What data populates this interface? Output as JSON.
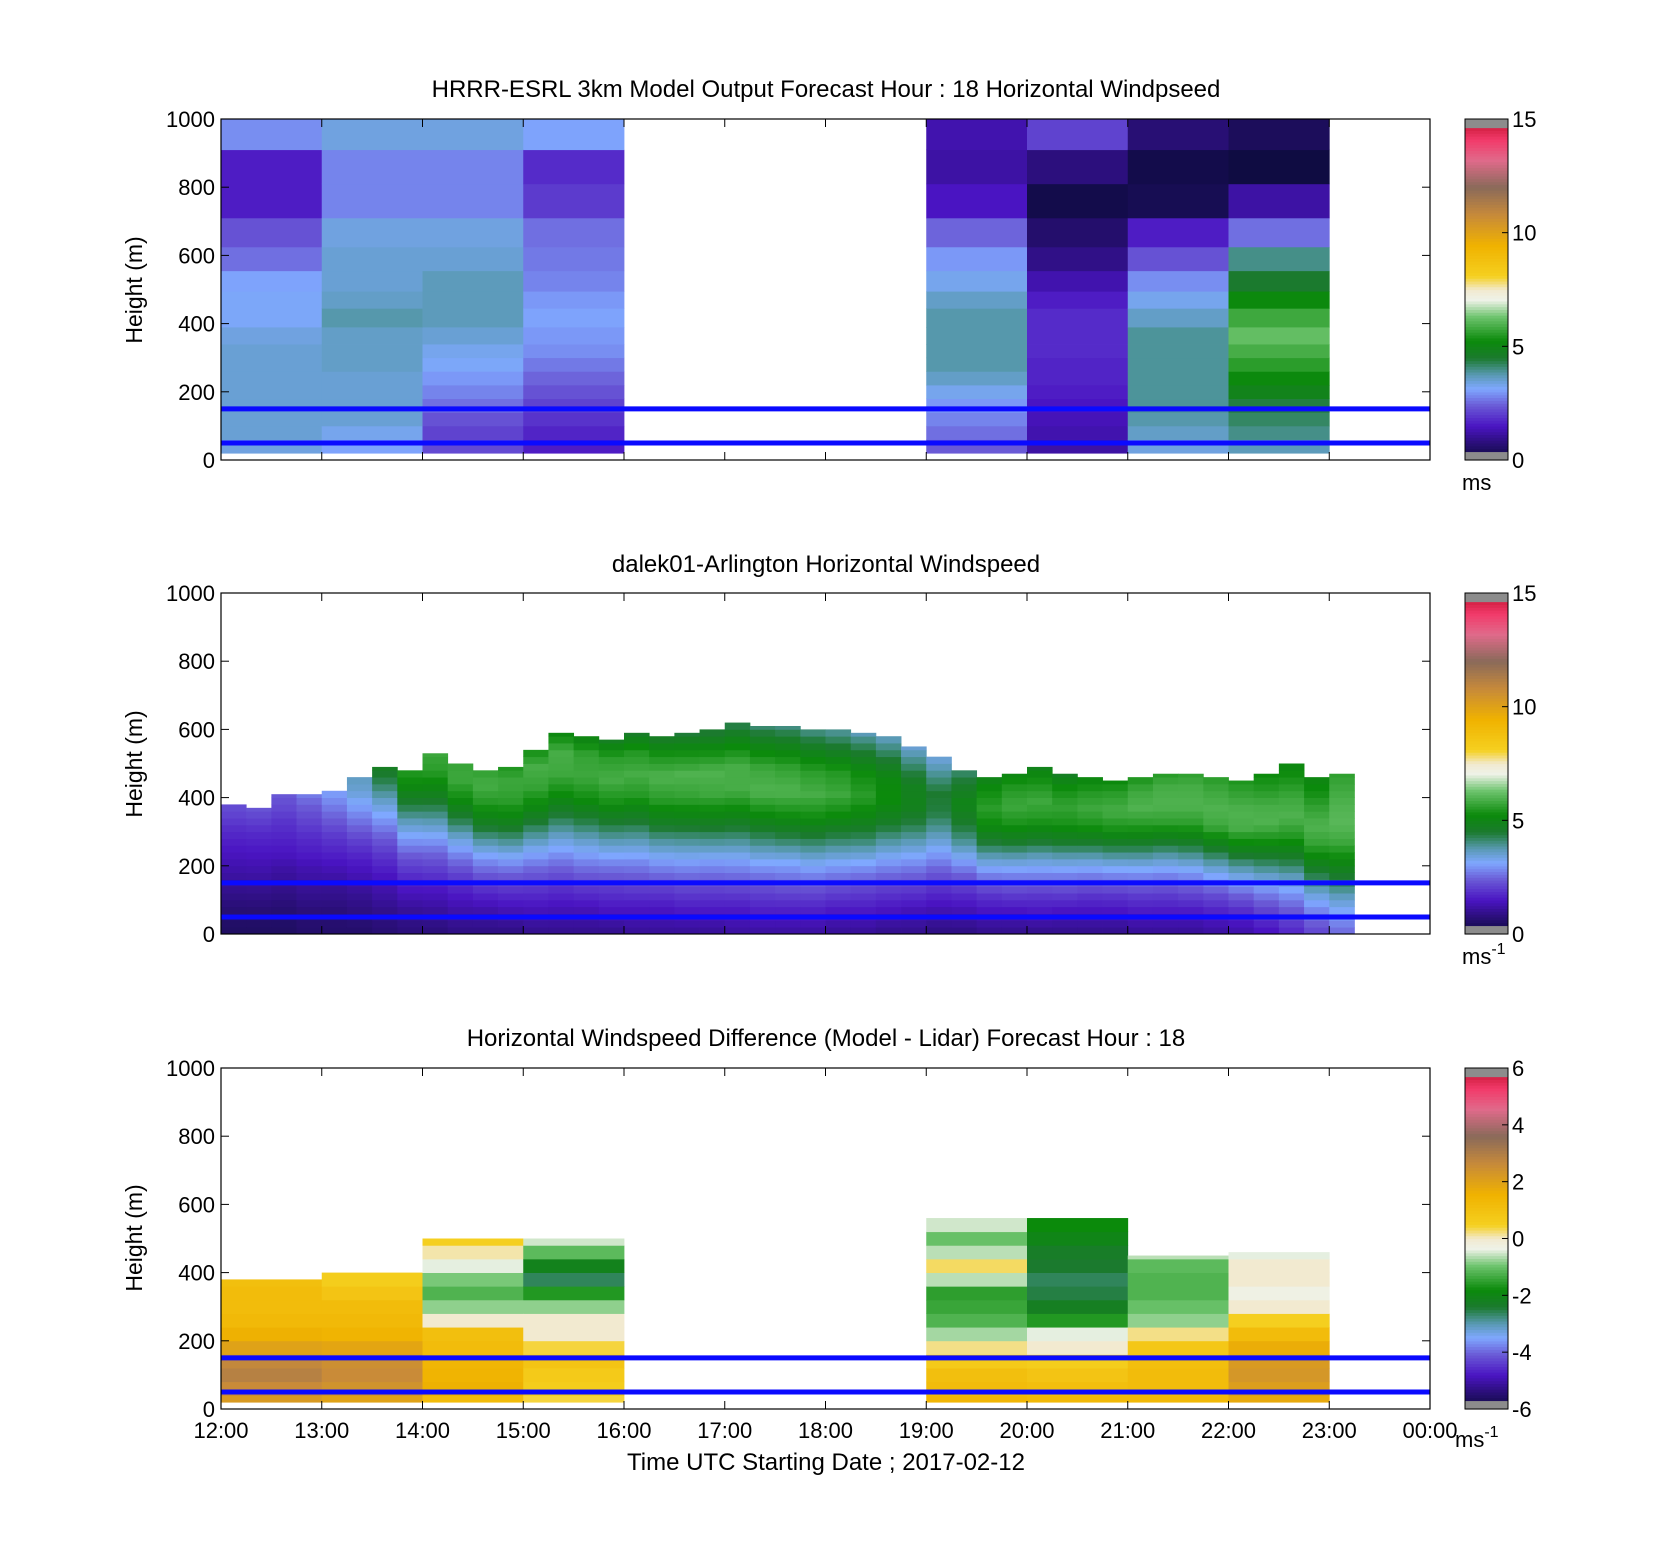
{
  "figure": {
    "xlabel": "Time UTC  Starting Date ; 2017-02-12",
    "ylabel": "Height (m)"
  },
  "chart_data": [
    {
      "type": "heatmap",
      "title": "HRRR-ESRL 3km Model Output   Forecast Hour : 18 Horizontal Windpseed",
      "ylabel": "Height (m)",
      "ylim": [
        0,
        1000
      ],
      "yticks": [
        "0",
        "200",
        "400",
        "600",
        "800",
        "1000"
      ],
      "xlim": [
        "12:00",
        "00:00"
      ],
      "x_tick_labels_shown": false,
      "colorbar": {
        "ticks": [
          "0",
          "5",
          "10",
          "15"
        ],
        "range": [
          0,
          15
        ],
        "unit": "ms",
        "unit_sup": ""
      },
      "reference_lines_m": [
        50,
        150
      ],
      "hours": [
        "12:00",
        "13:00",
        "14:00",
        "15:00",
        "19:00",
        "20:00",
        "21:00",
        "22:00"
      ],
      "levels_m": [
        40,
        80,
        120,
        160,
        200,
        240,
        280,
        320,
        360,
        420,
        470,
        520,
        590,
        660,
        760,
        860,
        960
      ],
      "values": [
        [
          3.4,
          3.5,
          3.5,
          3.5,
          3.5,
          3.5,
          3.5,
          3.5,
          3.4,
          3.2,
          3.2,
          3.1,
          2.6,
          2.3,
          1.6,
          1.6,
          2.9
        ],
        [
          3.1,
          3.3,
          3.5,
          3.5,
          3.5,
          3.5,
          3.6,
          3.6,
          3.6,
          3.8,
          3.6,
          3.5,
          3.5,
          3.4,
          2.8,
          2.8,
          3.4
        ],
        [
          2.2,
          2.1,
          2.3,
          2.6,
          2.8,
          3.0,
          3.2,
          3.3,
          3.5,
          3.7,
          3.7,
          3.7,
          3.5,
          3.4,
          2.8,
          2.8,
          3.4
        ],
        [
          1.6,
          1.7,
          1.9,
          2.1,
          2.3,
          2.5,
          2.7,
          2.9,
          3.0,
          3.1,
          3.0,
          2.8,
          2.7,
          2.6,
          2.0,
          1.8,
          3.1
        ],
        [
          2.4,
          2.6,
          2.8,
          3.0,
          3.3,
          3.6,
          3.8,
          3.8,
          3.8,
          3.8,
          3.6,
          3.3,
          3.0,
          2.5,
          1.5,
          1.2,
          1.3
        ],
        [
          1.2,
          1.3,
          1.4,
          1.5,
          1.6,
          1.7,
          1.7,
          1.8,
          1.8,
          1.8,
          1.6,
          1.3,
          0.9,
          0.6,
          0.2,
          0.8,
          2.1
        ],
        [
          3.4,
          3.6,
          3.8,
          3.9,
          3.9,
          3.9,
          3.9,
          3.9,
          3.9,
          3.6,
          3.3,
          2.9,
          2.3,
          1.6,
          0.3,
          0.2,
          0.7
        ],
        [
          3.7,
          4.0,
          4.2,
          4.4,
          4.9,
          5.2,
          5.6,
          5.9,
          6.2,
          5.8,
          5.2,
          4.5,
          4.0,
          2.6,
          1.2,
          0.1,
          0.4
        ]
      ]
    },
    {
      "type": "heatmap",
      "title": "dalek01-Arlington  Horizontal Windspeed",
      "ylabel": "Height (m)",
      "ylim": [
        0,
        1000
      ],
      "yticks": [
        "0",
        "200",
        "400",
        "600",
        "800",
        "1000"
      ],
      "xlim": [
        "12:00",
        "00:00"
      ],
      "x_tick_labels_shown": false,
      "colorbar": {
        "ticks": [
          "0",
          "5",
          "10",
          "15"
        ],
        "range": [
          0,
          15
        ],
        "unit": "ms",
        "unit_sup": "-1"
      },
      "reference_lines_m": [
        50,
        150
      ],
      "time_step_min": 15,
      "level_step_m": 20,
      "column_top_m": [
        380,
        370,
        410,
        410,
        420,
        460,
        490,
        480,
        530,
        500,
        480,
        490,
        540,
        590,
        580,
        570,
        590,
        580,
        590,
        600,
        620,
        610,
        610,
        600,
        600,
        590,
        580,
        550,
        520,
        480,
        460,
        470,
        490,
        470,
        460,
        450,
        460,
        470,
        470,
        460,
        450,
        470,
        500,
        460,
        470
      ],
      "column_speed_profile": [
        [
          0.5,
          0.6,
          0.8,
          1.0,
          1.2,
          1.4,
          1.6,
          1.8,
          2.1,
          2.3
        ],
        [
          0.5,
          0.6,
          0.8,
          1.0,
          1.2,
          1.4,
          1.6,
          1.8,
          2.1,
          2.4
        ],
        [
          0.5,
          0.6,
          0.8,
          1.0,
          1.2,
          1.5,
          1.7,
          1.9,
          2.2,
          2.4
        ],
        [
          0.6,
          0.7,
          0.9,
          1.1,
          1.3,
          1.6,
          1.8,
          2.1,
          2.4,
          2.8
        ],
        [
          0.6,
          0.7,
          0.9,
          1.1,
          1.4,
          1.7,
          2.0,
          2.4,
          2.8,
          3.2
        ],
        [
          0.6,
          0.8,
          1.0,
          1.3,
          1.6,
          2.0,
          2.5,
          3.0,
          3.5,
          3.7
        ],
        [
          0.7,
          0.9,
          1.2,
          1.5,
          1.9,
          2.4,
          3.0,
          3.6,
          4.3,
          4.8
        ],
        [
          0.8,
          1.0,
          1.4,
          1.8,
          2.3,
          3.0,
          3.7,
          4.5,
          5.2,
          5.6
        ],
        [
          0.8,
          1.1,
          1.5,
          2.0,
          2.6,
          3.4,
          4.2,
          5.0,
          5.6,
          5.8
        ],
        [
          0.9,
          1.2,
          1.6,
          2.1,
          2.8,
          3.6,
          4.5,
          5.3,
          5.8,
          5.7
        ],
        [
          0.9,
          1.2,
          1.7,
          2.3,
          3.0,
          3.9,
          4.8,
          5.5,
          5.9,
          5.6
        ],
        [
          0.9,
          1.3,
          1.8,
          2.4,
          3.2,
          4.1,
          5.0,
          5.6,
          5.8,
          5.4
        ],
        [
          1.0,
          1.4,
          1.9,
          2.5,
          3.3,
          4.2,
          5.1,
          5.7,
          5.9,
          5.2
        ],
        [
          1.0,
          1.4,
          1.9,
          2.6,
          3.4,
          4.3,
          5.2,
          5.8,
          5.9,
          5.0
        ],
        [
          1.0,
          1.4,
          2.0,
          2.7,
          3.5,
          4.4,
          5.3,
          5.8,
          5.7,
          4.8
        ],
        [
          1.0,
          1.5,
          2.0,
          2.7,
          3.6,
          4.5,
          5.4,
          5.9,
          5.6,
          4.6
        ],
        [
          1.1,
          1.5,
          2.1,
          2.8,
          3.7,
          4.6,
          5.5,
          5.9,
          5.5,
          4.5
        ],
        [
          1.1,
          1.5,
          2.1,
          2.9,
          3.8,
          4.8,
          5.6,
          6.0,
          5.4,
          4.4
        ],
        [
          1.1,
          1.6,
          2.2,
          3.0,
          3.9,
          4.9,
          5.7,
          6.0,
          5.3,
          4.3
        ],
        [
          1.1,
          1.6,
          2.2,
          3.0,
          4.0,
          5.0,
          5.8,
          6.0,
          5.2,
          4.2
        ],
        [
          1.2,
          1.6,
          2.3,
          3.1,
          4.1,
          5.1,
          5.9,
          5.9,
          5.1,
          4.1
        ],
        [
          1.2,
          1.7,
          2.3,
          3.2,
          4.2,
          5.2,
          6.0,
          5.8,
          5.0,
          4.0
        ],
        [
          1.2,
          1.7,
          2.4,
          3.2,
          4.3,
          5.3,
          6.0,
          5.7,
          4.9,
          3.9
        ],
        [
          1.2,
          1.7,
          2.4,
          3.3,
          4.3,
          5.3,
          5.9,
          5.6,
          4.8,
          3.8
        ],
        [
          1.1,
          1.6,
          2.3,
          3.2,
          4.2,
          5.2,
          5.8,
          5.5,
          4.6,
          3.7
        ],
        [
          1.1,
          1.6,
          2.2,
          3.1,
          4.1,
          5.0,
          5.6,
          5.3,
          4.5,
          3.6
        ],
        [
          1.0,
          1.5,
          2.1,
          2.9,
          3.8,
          4.7,
          5.3,
          5.1,
          4.3,
          3.5
        ],
        [
          1.0,
          1.4,
          2.0,
          2.7,
          3.5,
          4.3,
          4.9,
          4.8,
          4.1,
          3.4
        ],
        [
          0.9,
          1.3,
          1.8,
          2.4,
          3.1,
          3.8,
          4.4,
          4.5,
          3.9,
          3.3
        ],
        [
          0.9,
          1.3,
          1.8,
          2.4,
          3.2,
          4.0,
          4.6,
          5.0,
          4.6,
          4.0
        ],
        [
          1.0,
          1.4,
          1.9,
          2.6,
          3.5,
          4.4,
          5.2,
          5.6,
          5.3,
          4.8
        ],
        [
          1.0,
          1.4,
          2.0,
          2.7,
          3.6,
          4.6,
          5.4,
          5.8,
          5.5,
          5.0
        ],
        [
          1.0,
          1.5,
          2.0,
          2.8,
          3.7,
          4.7,
          5.5,
          5.8,
          5.4,
          4.8
        ],
        [
          1.0,
          1.4,
          2.0,
          2.7,
          3.6,
          4.6,
          5.4,
          5.7,
          5.3,
          4.6
        ],
        [
          1.0,
          1.4,
          1.9,
          2.6,
          3.5,
          4.5,
          5.4,
          5.8,
          5.5,
          4.9
        ],
        [
          1.0,
          1.4,
          1.9,
          2.6,
          3.5,
          4.5,
          5.4,
          5.9,
          5.6,
          5.1
        ],
        [
          1.1,
          1.5,
          2.0,
          2.7,
          3.6,
          4.6,
          5.5,
          6.0,
          5.8,
          5.3
        ],
        [
          1.1,
          1.5,
          2.0,
          2.7,
          3.6,
          4.6,
          5.6,
          6.0,
          5.9,
          5.5
        ],
        [
          1.1,
          1.5,
          2.1,
          2.8,
          3.7,
          4.7,
          5.6,
          6.0,
          5.9,
          5.6
        ],
        [
          1.2,
          1.6,
          2.2,
          3.0,
          3.9,
          4.9,
          5.8,
          6.0,
          5.8,
          5.5
        ],
        [
          1.3,
          1.7,
          2.4,
          3.2,
          4.1,
          5.1,
          5.9,
          6.0,
          5.7,
          5.4
        ],
        [
          1.5,
          2.0,
          2.7,
          3.5,
          4.4,
          5.3,
          6.0,
          5.9,
          5.5,
          5.2
        ],
        [
          1.8,
          2.3,
          3.0,
          3.8,
          4.7,
          5.5,
          6.0,
          5.8,
          5.4,
          5.0
        ],
        [
          2.2,
          2.7,
          3.4,
          4.2,
          5.0,
          5.7,
          6.0,
          5.7,
          5.3,
          5.0
        ],
        [
          2.6,
          3.1,
          3.7,
          4.5,
          5.2,
          5.8,
          6.1,
          6.0,
          5.8,
          5.6
        ]
      ]
    },
    {
      "type": "heatmap",
      "title": "Horizontal Windspeed Difference (Model - Lidar) Forecast Hour : 18",
      "ylabel": "Height (m)",
      "xlabel": "Time UTC  Starting Date ; 2017-02-12",
      "ylim": [
        0,
        1000
      ],
      "yticks": [
        "0",
        "200",
        "400",
        "600",
        "800",
        "1000"
      ],
      "xticks": [
        "12:00",
        "13:00",
        "14:00",
        "15:00",
        "16:00",
        "17:00",
        "18:00",
        "19:00",
        "20:00",
        "21:00",
        "22:00",
        "23:00",
        "00:00"
      ],
      "colorbar": {
        "ticks": [
          "-6",
          "-4",
          "-2",
          "0",
          "2",
          "4",
          "6"
        ],
        "range": [
          -6,
          6
        ],
        "unit": "ms",
        "unit_sup": "-1"
      },
      "reference_lines_m": [
        50,
        150
      ],
      "hours": [
        "12:00",
        "13:00",
        "14:00",
        "15:00",
        "19:00",
        "20:00",
        "21:00",
        "22:00"
      ],
      "column_top_m": [
        380,
        400,
        500,
        500,
        560,
        560,
        450,
        460
      ],
      "levels_m": [
        20,
        60,
        100,
        140,
        180,
        220,
        260,
        300,
        340,
        380,
        420,
        460,
        500,
        540
      ],
      "values": [
        [
          2.2,
          2.6,
          2.9,
          2.7,
          2.0,
          1.6,
          1.3,
          1.2,
          1.2,
          1.1,
          null,
          null,
          null,
          null
        ],
        [
          2.0,
          2.4,
          2.6,
          2.5,
          1.9,
          1.5,
          1.3,
          1.2,
          0.9,
          0.6,
          null,
          null,
          null,
          null
        ],
        [
          1.2,
          1.6,
          1.5,
          1.4,
          1.2,
          1.1,
          0.0,
          -0.8,
          -1.2,
          -0.9,
          -0.4,
          0.1,
          0.5,
          null
        ],
        [
          0.4,
          0.6,
          0.7,
          0.9,
          0.4,
          0.0,
          0.0,
          -0.8,
          -1.6,
          -2.6,
          -2.1,
          -1.1,
          -0.5,
          null
        ],
        [
          1.4,
          1.2,
          1.1,
          0.7,
          0.2,
          -0.7,
          -1.2,
          -1.4,
          -1.5,
          -0.6,
          0.3,
          -0.6,
          -1.0,
          -0.5
        ],
        [
          1.3,
          1.1,
          0.9,
          0.6,
          0.0,
          -0.4,
          -1.6,
          -2.2,
          -2.5,
          -2.6,
          -2.4,
          -2.3,
          -2.0,
          -1.8
        ],
        [
          1.3,
          1.2,
          1.2,
          1.1,
          0.8,
          0.2,
          -0.8,
          -1.0,
          -1.2,
          -1.2,
          -1.1,
          -0.6,
          null,
          null
        ],
        [
          1.8,
          2.1,
          2.3,
          2.2,
          1.7,
          1.2,
          0.5,
          0.0,
          -0.3,
          0.0,
          0.0,
          -0.4,
          null,
          null
        ]
      ]
    }
  ]
}
